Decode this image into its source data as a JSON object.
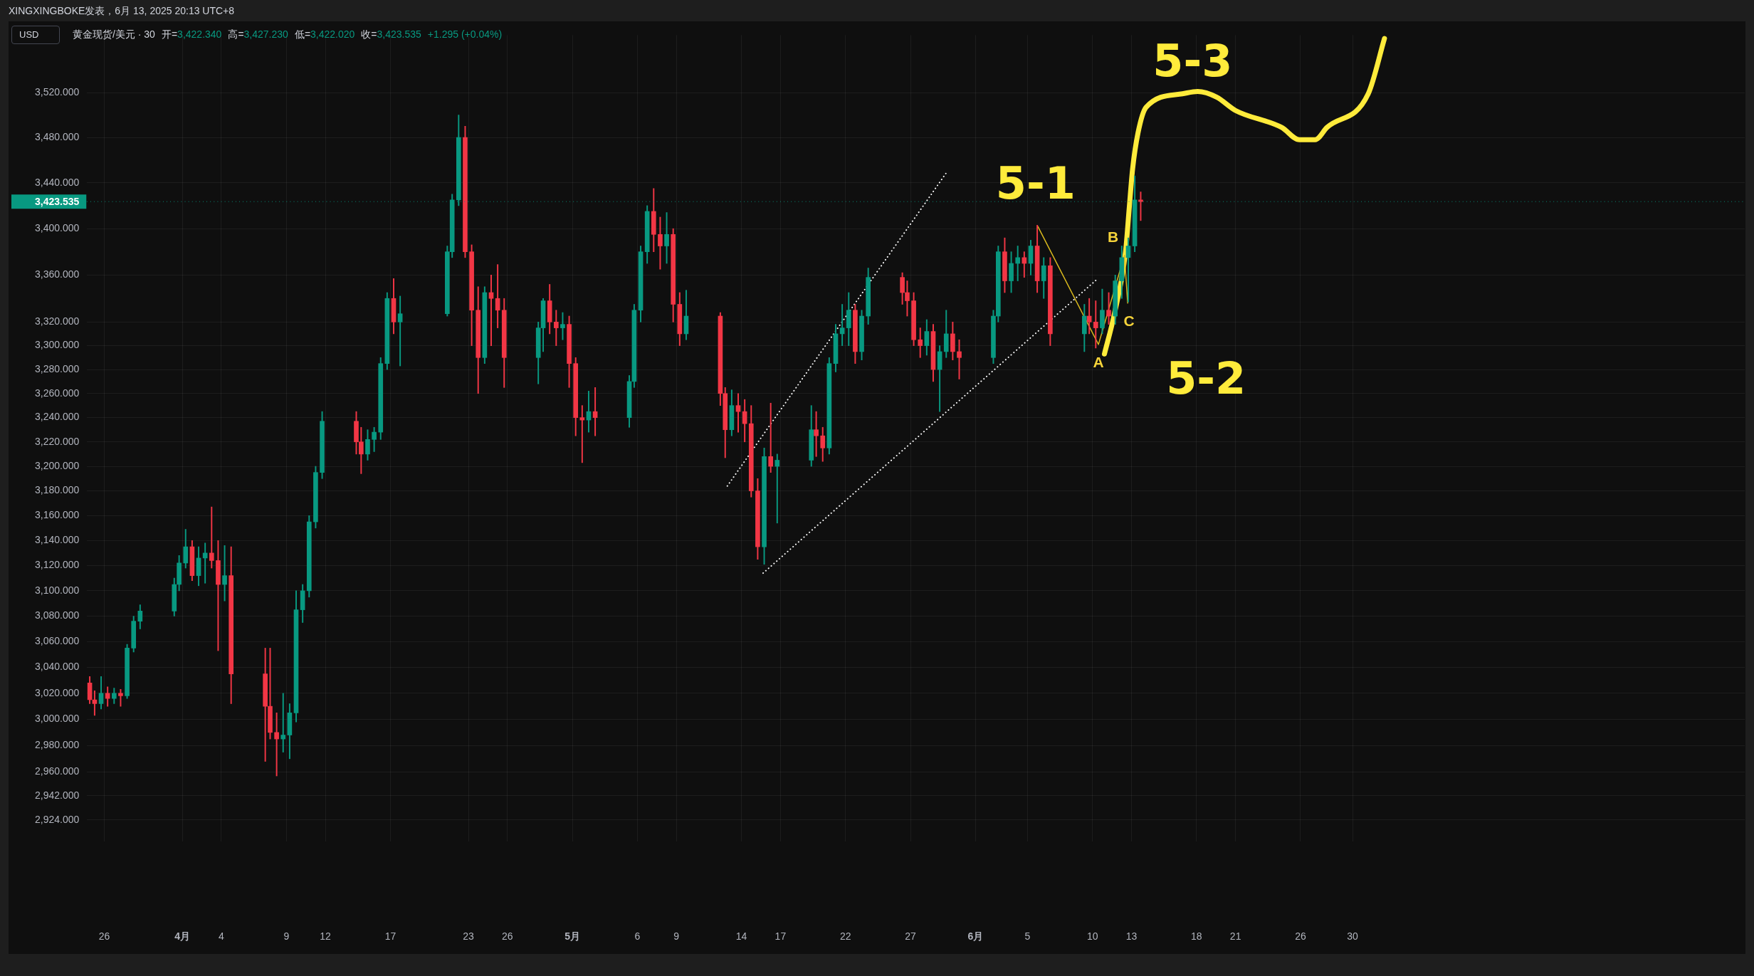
{
  "chart_data": {
    "type": "candlestick",
    "title": "XINGXINGBOKE发表，6月 13, 2025 20:13 UTC+8",
    "subtitle": "黄金现货/美元 · 30",
    "ylabel": "USD",
    "annotations": [
      "开=3,422.340",
      "高=3,427.230",
      "低=3,422.020",
      "收=3,423.535",
      "+1.295 (+0.04%)",
      {
        "text": "A",
        "x": "2025-06-10T11:00",
        "y": 3301
      },
      {
        "text": "B",
        "x": "2025-06-12T11:00",
        "y": 3377
      },
      {
        "text": "C",
        "x": "2025-06-12T17:00",
        "y": 3336
      },
      {
        "text": "5-1",
        "x": "2025-06-05T19:00",
        "y": 3402
      },
      {
        "text": "5-3",
        "x": "2025-06-18T02:00",
        "y": 3521
      },
      "5-2"
    ],
    "x": [
      "2025-03-24T21:00",
      "2025-03-25T06:00",
      "2025-03-25T18:00",
      "2025-03-26T06:00",
      "2025-03-26T18:00",
      "2025-03-27T06:00",
      "2025-03-27T18:00",
      "2025-03-28T06:00",
      "2025-03-28T18:00",
      "2025-03-31T09:00",
      "2025-03-31T18:00",
      "2025-04-01T06:00",
      "2025-04-01T18:00",
      "2025-04-02T06:00",
      "2025-04-02T18:00",
      "2025-04-03T06:00",
      "2025-04-03T18:00",
      "2025-04-04T06:00",
      "2025-04-04T18:00",
      "2025-04-07T09:00",
      "2025-04-07T18:00",
      "2025-04-08T06:00",
      "2025-04-08T18:00",
      "2025-04-09T06:00",
      "2025-04-09T18:00",
      "2025-04-10T06:00",
      "2025-04-10T18:00",
      "2025-04-11T06:00",
      "2025-04-11T18:00",
      "2025-04-14T09:00",
      "2025-04-14T18:00",
      "2025-04-15T06:00",
      "2025-04-15T18:00",
      "2025-04-16T06:00",
      "2025-04-16T18:00",
      "2025-04-17T06:00",
      "2025-04-17T18:00",
      "2025-04-21T09:00",
      "2025-04-21T18:00",
      "2025-04-22T06:00",
      "2025-04-22T18:00",
      "2025-04-23T06:00",
      "2025-04-23T18:00",
      "2025-04-24T06:00",
      "2025-04-24T18:00",
      "2025-04-25T06:00",
      "2025-04-25T18:00",
      "2025-04-28T09:00",
      "2025-04-28T18:00",
      "2025-04-29T06:00",
      "2025-04-29T18:00",
      "2025-04-30T06:00",
      "2025-04-30T18:00",
      "2025-05-01T06:00",
      "2025-05-01T18:00",
      "2025-05-02T06:00",
      "2025-05-02T18:00",
      "2025-05-05T09:00",
      "2025-05-05T18:00",
      "2025-05-06T06:00",
      "2025-05-06T18:00",
      "2025-05-07T06:00",
      "2025-05-07T18:00",
      "2025-05-08T06:00",
      "2025-05-08T18:00",
      "2025-05-09T06:00",
      "2025-05-09T18:00",
      "2025-05-12T09:00",
      "2025-05-12T18:00",
      "2025-05-13T06:00",
      "2025-05-13T18:00",
      "2025-05-14T06:00",
      "2025-05-14T18:00",
      "2025-05-15T06:00",
      "2025-05-15T18:00",
      "2025-05-16T06:00",
      "2025-05-16T18:00",
      "2025-05-19T09:00",
      "2025-05-19T18:00",
      "2025-05-20T06:00",
      "2025-05-20T18:00",
      "2025-05-21T06:00",
      "2025-05-21T18:00",
      "2025-05-22T06:00",
      "2025-05-22T18:00",
      "2025-05-23T06:00",
      "2025-05-23T18:00",
      "2025-05-26T09:00",
      "2025-05-26T18:00",
      "2025-05-27T06:00",
      "2025-05-27T18:00",
      "2025-05-28T06:00",
      "2025-05-28T18:00",
      "2025-05-29T06:00",
      "2025-05-29T18:00",
      "2025-05-30T06:00",
      "2025-05-30T18:00",
      "2025-06-02T09:00",
      "2025-06-02T18:00",
      "2025-06-03T06:00",
      "2025-06-03T18:00",
      "2025-06-04T06:00",
      "2025-06-04T18:00",
      "2025-06-05T06:00",
      "2025-06-05T18:00",
      "2025-06-06T06:00",
      "2025-06-06T18:00",
      "2025-06-09T09:00",
      "2025-06-09T18:00",
      "2025-06-10T06:00",
      "2025-06-10T18:00",
      "2025-06-11T06:00",
      "2025-06-11T18:00",
      "2025-06-12T06:00",
      "2025-06-12T18:00",
      "2025-06-13T06:00",
      "2025-06-13T17:00"
    ],
    "ohlc": [
      [
        3028,
        3033,
        3012,
        3015
      ],
      [
        3015,
        3022,
        3003,
        3012
      ],
      [
        3012,
        3033,
        3008,
        3020
      ],
      [
        3020,
        3025,
        3010,
        3016
      ],
      [
        3016,
        3024,
        3012,
        3020
      ],
      [
        3020,
        3023,
        3010,
        3018
      ],
      [
        3018,
        3058,
        3016,
        3055
      ],
      [
        3055,
        3080,
        3052,
        3076
      ],
      [
        3076,
        3089,
        3070,
        3084
      ],
      [
        3084,
        3110,
        3080,
        3105
      ],
      [
        3105,
        3128,
        3100,
        3122
      ],
      [
        3122,
        3149,
        3118,
        3135
      ],
      [
        3135,
        3140,
        3108,
        3112
      ],
      [
        3112,
        3135,
        3104,
        3126
      ],
      [
        3126,
        3138,
        3106,
        3130
      ],
      [
        3130,
        3167,
        3118,
        3124
      ],
      [
        3124,
        3140,
        3053,
        3105
      ],
      [
        3105,
        3136,
        3092,
        3112
      ],
      [
        3112,
        3135,
        3012,
        3035
      ],
      [
        3035,
        3055,
        2968,
        3010
      ],
      [
        3010,
        3055,
        2985,
        2990
      ],
      [
        2990,
        3005,
        2957,
        2985
      ],
      [
        2985,
        3020,
        2975,
        2988
      ],
      [
        2988,
        3012,
        2970,
        3005
      ],
      [
        3005,
        3100,
        2998,
        3085
      ],
      [
        3085,
        3105,
        3075,
        3100
      ],
      [
        3100,
        3160,
        3095,
        3155
      ],
      [
        3155,
        3200,
        3150,
        3195
      ],
      [
        3195,
        3245,
        3190,
        3237
      ],
      [
        3237,
        3245,
        3210,
        3220
      ],
      [
        3220,
        3232,
        3194,
        3210
      ],
      [
        3210,
        3230,
        3205,
        3222
      ],
      [
        3222,
        3232,
        3212,
        3228
      ],
      [
        3228,
        3290,
        3222,
        3285
      ],
      [
        3285,
        3345,
        3280,
        3340
      ],
      [
        3340,
        3357,
        3310,
        3320
      ],
      [
        3320,
        3342,
        3283,
        3327
      ],
      [
        3327,
        3385,
        3325,
        3380
      ],
      [
        3380,
        3430,
        3375,
        3425
      ],
      [
        3425,
        3500,
        3420,
        3480
      ],
      [
        3480,
        3490,
        3375,
        3380
      ],
      [
        3380,
        3386,
        3300,
        3330
      ],
      [
        3330,
        3350,
        3260,
        3290
      ],
      [
        3290,
        3350,
        3285,
        3345
      ],
      [
        3345,
        3360,
        3300,
        3340
      ],
      [
        3340,
        3369,
        3315,
        3330
      ],
      [
        3330,
        3340,
        3265,
        3290
      ],
      [
        3290,
        3320,
        3268,
        3315
      ],
      [
        3315,
        3340,
        3295,
        3338
      ],
      [
        3338,
        3352,
        3310,
        3320
      ],
      [
        3320,
        3330,
        3300,
        3315
      ],
      [
        3315,
        3328,
        3305,
        3318
      ],
      [
        3318,
        3325,
        3265,
        3285
      ],
      [
        3285,
        3290,
        3225,
        3240
      ],
      [
        3240,
        3250,
        3203,
        3238
      ],
      [
        3238,
        3262,
        3228,
        3245
      ],
      [
        3245,
        3265,
        3225,
        3240
      ],
      [
        3240,
        3275,
        3232,
        3270
      ],
      [
        3270,
        3335,
        3265,
        3330
      ],
      [
        3330,
        3385,
        3320,
        3380
      ],
      [
        3380,
        3420,
        3370,
        3415
      ],
      [
        3415,
        3435,
        3380,
        3395
      ],
      [
        3395,
        3410,
        3365,
        3385
      ],
      [
        3385,
        3414,
        3370,
        3395
      ],
      [
        3395,
        3400,
        3320,
        3335
      ],
      [
        3335,
        3345,
        3300,
        3310
      ],
      [
        3310,
        3347,
        3305,
        3325
      ],
      [
        3325,
        3328,
        3250,
        3260
      ],
      [
        3260,
        3265,
        3207,
        3230
      ],
      [
        3230,
        3263,
        3225,
        3250
      ],
      [
        3250,
        3260,
        3228,
        3245
      ],
      [
        3245,
        3255,
        3220,
        3235
      ],
      [
        3235,
        3250,
        3175,
        3180
      ],
      [
        3180,
        3190,
        3125,
        3135
      ],
      [
        3135,
        3215,
        3121,
        3208
      ],
      [
        3208,
        3252,
        3195,
        3200
      ],
      [
        3200,
        3210,
        3154,
        3205
      ],
      [
        3205,
        3250,
        3200,
        3230
      ],
      [
        3230,
        3245,
        3208,
        3225
      ],
      [
        3225,
        3232,
        3204,
        3215
      ],
      [
        3215,
        3290,
        3210,
        3285
      ],
      [
        3285,
        3318,
        3278,
        3310
      ],
      [
        3310,
        3335,
        3300,
        3315
      ],
      [
        3315,
        3345,
        3300,
        3330
      ],
      [
        3330,
        3335,
        3285,
        3295
      ],
      [
        3295,
        3330,
        3288,
        3325
      ],
      [
        3325,
        3366,
        3318,
        3358
      ],
      [
        3358,
        3362,
        3335,
        3345
      ],
      [
        3345,
        3355,
        3325,
        3338
      ],
      [
        3338,
        3345,
        3300,
        3305
      ],
      [
        3305,
        3315,
        3290,
        3300
      ],
      [
        3300,
        3322,
        3292,
        3312
      ],
      [
        3312,
        3318,
        3270,
        3280
      ],
      [
        3280,
        3300,
        3245,
        3295
      ],
      [
        3295,
        3330,
        3290,
        3310
      ],
      [
        3310,
        3320,
        3288,
        3295
      ],
      [
        3295,
        3305,
        3272,
        3290
      ],
      [
        3290,
        3330,
        3285,
        3325
      ],
      [
        3325,
        3385,
        3320,
        3380
      ],
      [
        3380,
        3392,
        3345,
        3355
      ],
      [
        3355,
        3380,
        3345,
        3370
      ],
      [
        3370,
        3385,
        3355,
        3375
      ],
      [
        3375,
        3380,
        3358,
        3370
      ],
      [
        3370,
        3390,
        3360,
        3385
      ],
      [
        3385,
        3403,
        3345,
        3355
      ],
      [
        3355,
        3375,
        3340,
        3368
      ],
      [
        3368,
        3375,
        3300,
        3310
      ],
      [
        3310,
        3335,
        3295,
        3325
      ],
      [
        3325,
        3340,
        3310,
        3320
      ],
      [
        3320,
        3338,
        3298,
        3315
      ],
      [
        3315,
        3348,
        3310,
        3330
      ],
      [
        3330,
        3345,
        3318,
        3325
      ],
      [
        3325,
        3360,
        3318,
        3355
      ],
      [
        3355,
        3385,
        3340,
        3375
      ],
      [
        3375,
        3392,
        3337,
        3385
      ],
      [
        3385,
        3446,
        3380,
        3425
      ],
      [
        3425,
        3432,
        3407,
        3423.535
      ]
    ],
    "colors": [
      "#f23645",
      "#f23645",
      "#089981",
      "#f23645",
      "#089981",
      "#f23645",
      "#089981",
      "#089981",
      "#089981",
      "#089981",
      "#089981",
      "#089981",
      "#f23645",
      "#089981",
      "#089981",
      "#f23645",
      "#f23645",
      "#089981",
      "#f23645",
      "#f23645",
      "#f23645",
      "#f23645",
      "#089981",
      "#089981",
      "#089981",
      "#089981",
      "#089981",
      "#089981",
      "#089981",
      "#f23645",
      "#f23645",
      "#089981",
      "#089981",
      "#089981",
      "#089981",
      "#f23645",
      "#089981",
      "#089981",
      "#089981",
      "#089981",
      "#f23645",
      "#f23645",
      "#f23645",
      "#089981",
      "#f23645",
      "#f23645",
      "#f23645",
      "#089981",
      "#089981",
      "#f23645",
      "#f23645",
      "#089981",
      "#f23645",
      "#f23645",
      "#f23645",
      "#089981",
      "#f23645",
      "#089981",
      "#089981",
      "#089981",
      "#089981",
      "#f23645",
      "#f23645",
      "#089981",
      "#f23645",
      "#f23645",
      "#089981",
      "#f23645",
      "#f23645",
      "#089981",
      "#f23645",
      "#f23645",
      "#f23645",
      "#f23645",
      "#089981",
      "#f23645",
      "#089981",
      "#089981",
      "#f23645",
      "#f23645",
      "#089981",
      "#089981",
      "#089981",
      "#089981",
      "#f23645",
      "#089981",
      "#089981",
      "#f23645",
      "#f23645",
      "#f23645",
      "#f23645",
      "#089981",
      "#f23645",
      "#089981",
      "#089981",
      "#f23645",
      "#f23645",
      "#089981",
      "#089981",
      "#f23645",
      "#089981",
      "#089981",
      "#f23645",
      "#089981",
      "#f23645",
      "#089981",
      "#f23645",
      "#089981",
      "#f23645",
      "#f23645",
      "#089981",
      "#f23645",
      "#089981",
      "#089981",
      "#089981",
      "#089981",
      "#f23645"
    ],
    "series": [
      {
        "type": "line",
        "x": [
          "2025-05-12T22:00",
          "2025-05-29T20:00"
        ],
        "values": [
          3184,
          3450
        ],
        "color": "#ffffff",
        "line_style": "dotted"
      },
      {
        "type": "line",
        "x": [
          "2025-05-15T16:00",
          "2025-06-10T10:00"
        ],
        "values": [
          3114,
          3357
        ],
        "color": "#ffffff",
        "line_style": "dotted"
      },
      {
        "type": "line",
        "x": [
          "2025-06-05T19:00",
          "2025-06-10T11:00",
          "2025-06-12T11:00",
          "2025-06-12T17:00"
        ],
        "values": [
          3402,
          3301,
          3377,
          3336
        ],
        "color": "#d9b91e",
        "line_style": "solid"
      },
      {
        "type": "line",
        "x": [
          "2025-06-10T22:00",
          "2025-06-11T16:00",
          "2025-06-12T13:00",
          "2025-06-12T20:00",
          "2025-06-13T02:00",
          "2025-06-13T12:00",
          "2025-06-14T03:00",
          "2025-06-16T22:00",
          "2025-06-18T02:00",
          "2025-06-19T13:00",
          "2025-06-21T00:00",
          "2025-06-24T13:00",
          "2025-06-25T22:00",
          "2025-06-27T03:00",
          "2025-06-28T01:00",
          "2025-07-01T05:00",
          "2025-07-02T11:00"
        ],
        "values": [
          3293,
          3326,
          3380,
          3419,
          3452,
          3484,
          3507,
          3519,
          3521,
          3516,
          3504,
          3489,
          3478,
          3478,
          3489,
          3519,
          3569
        ],
        "color": "#ffeb3b",
        "line_style": "solid"
      }
    ],
    "xlim": [
      "2025-03-24T16:00",
      "2025-07-30T04:00"
    ],
    "xticks": [
      {
        "value": "2025-03-26",
        "label": "26"
      },
      {
        "value": "2025-04-01",
        "label": "4月"
      },
      {
        "value": "2025-04-04",
        "label": "4"
      },
      {
        "value": "2025-04-09",
        "label": "9"
      },
      {
        "value": "2025-04-12",
        "label": "12"
      },
      {
        "value": "2025-04-17",
        "label": "17"
      },
      {
        "value": "2025-04-23",
        "label": "23"
      },
      {
        "value": "2025-04-26",
        "label": "26"
      },
      {
        "value": "2025-05-01",
        "label": "5月"
      },
      {
        "value": "2025-05-06",
        "label": "6"
      },
      {
        "value": "2025-05-09",
        "label": "9"
      },
      {
        "value": "2025-05-14",
        "label": "14"
      },
      {
        "value": "2025-05-17",
        "label": "17"
      },
      {
        "value": "2025-05-22",
        "label": "22"
      },
      {
        "value": "2025-05-27",
        "label": "27"
      },
      {
        "value": "2025-06-01",
        "label": "6月"
      },
      {
        "value": "2025-06-05",
        "label": "5"
      },
      {
        "value": "2025-06-10",
        "label": "10"
      },
      {
        "value": "2025-06-13",
        "label": "13"
      },
      {
        "value": "2025-06-18",
        "label": "18"
      },
      {
        "value": "2025-06-21",
        "label": "21"
      },
      {
        "value": "2025-06-26",
        "label": "26"
      },
      {
        "value": "2025-06-30",
        "label": "30"
      }
    ],
    "ylim": [
      2908,
      3572
    ],
    "yticks": [
      {
        "value": 2924,
        "label": "2,924.000"
      },
      {
        "value": 2942,
        "label": "2,942.000"
      },
      {
        "value": 2960,
        "label": "2,960.000"
      },
      {
        "value": 2980,
        "label": "2,980.000"
      },
      {
        "value": 3000,
        "label": "3,000.000"
      },
      {
        "value": 3020,
        "label": "3,020.000"
      },
      {
        "value": 3040,
        "label": "3,040.000"
      },
      {
        "value": 3060,
        "label": "3,060.000"
      },
      {
        "value": 3080,
        "label": "3,080.000"
      },
      {
        "value": 3100,
        "label": "3,100.000"
      },
      {
        "value": 3120,
        "label": "3,120.000"
      },
      {
        "value": 3140,
        "label": "3,140.000"
      },
      {
        "value": 3160,
        "label": "3,160.000"
      },
      {
        "value": 3180,
        "label": "3,180.000"
      },
      {
        "value": 3200,
        "label": "3,200.000"
      },
      {
        "value": 3220,
        "label": "3,220.000"
      },
      {
        "value": 3240,
        "label": "3,240.000"
      },
      {
        "value": 3260,
        "label": "3,260.000"
      },
      {
        "value": 3280,
        "label": "3,280.000"
      },
      {
        "value": 3300,
        "label": "3,300.000"
      },
      {
        "value": 3320,
        "label": "3,320.000"
      },
      {
        "value": 3360,
        "label": "3,360.000"
      },
      {
        "value": 3400,
        "label": "3,400.000"
      },
      {
        "value": 3440,
        "label": "3,440.000"
      },
      {
        "value": 3480,
        "label": "3,480.000"
      },
      {
        "value": 3520,
        "label": "3,520.000"
      }
    ],
    "log": true,
    "grid": true,
    "ref_lines": [
      {
        "axis": "y",
        "value": 3423.535,
        "label": "3,423.535",
        "color": "#089981",
        "line_style": "dotted"
      }
    ]
  }
}
